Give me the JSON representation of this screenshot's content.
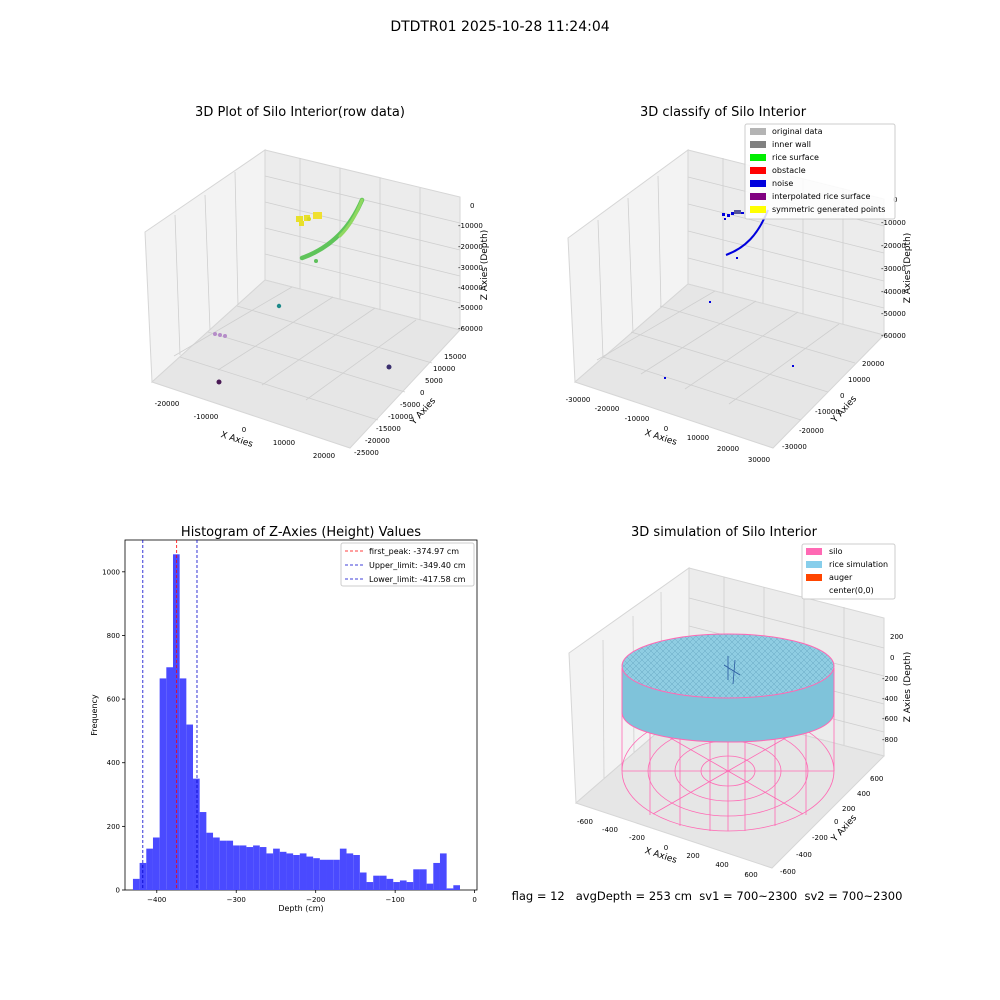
{
  "suptitle": "DTDTR01 2025-10-28 11:24:04",
  "footer": "flag = 12   avgDepth = 253 cm  sv1 = 700~2300  sv2 = 700~2300",
  "chart_data": [
    {
      "type": "scatter3d",
      "title": "3D Plot of Silo Interior(row data)",
      "xlabel": "X Axies",
      "ylabel": "Y Axies",
      "zlabel": "Z Axies (Depth)",
      "x_ticks": [
        "-20000",
        "-10000",
        "0",
        "10000",
        "20000"
      ],
      "y_ticks": [
        "-25000",
        "-20000",
        "-15000",
        "-10000",
        "-5000",
        "0",
        "5000",
        "10000",
        "15000"
      ],
      "z_ticks": [
        "0",
        "-10000",
        "-20000",
        "-30000",
        "-40000",
        "-50000",
        "-60000"
      ],
      "grid": true
    },
    {
      "type": "scatter3d",
      "title": "3D classify of Silo Interior",
      "xlabel": "X Axies",
      "ylabel": "Y Axies",
      "zlabel": "Z Axies (Depth)",
      "x_ticks": [
        "-30000",
        "-20000",
        "-10000",
        "0",
        "10000",
        "20000",
        "30000"
      ],
      "y_ticks": [
        "-30000",
        "-20000",
        "-10000",
        "0",
        "10000",
        "20000"
      ],
      "z_ticks": [
        "0",
        "-10000",
        "-20000",
        "-30000",
        "-40000",
        "-50000",
        "-60000"
      ],
      "legend_position": "top-right",
      "legend": [
        {
          "label": "original data",
          "color": "#b4b4b4"
        },
        {
          "label": "inner wall",
          "color": "#808080"
        },
        {
          "label": "rice surface",
          "color": "#00ee00"
        },
        {
          "label": "obstacle",
          "color": "#ff0000"
        },
        {
          "label": "noise",
          "color": "#0000dd"
        },
        {
          "label": "interpolated rice surface",
          "color": "#800080"
        },
        {
          "label": "symmetric generated points",
          "color": "#ffff00"
        }
      ],
      "grid": true
    },
    {
      "type": "bar",
      "title": "Histogram of Z-Axies (Height) Values",
      "xlabel": "Depth (cm)",
      "ylabel": "Frequency",
      "xlim": [
        -440,
        3
      ],
      "ylim": [
        0,
        1100
      ],
      "x_ticks": [
        -400,
        -300,
        -200,
        -100,
        0
      ],
      "y_ticks": [
        0,
        200,
        400,
        600,
        800,
        1000
      ],
      "bin_start": -430,
      "bin_width": 8.4,
      "values": [
        35,
        85,
        130,
        165,
        665,
        700,
        1055,
        665,
        520,
        350,
        245,
        180,
        165,
        155,
        155,
        140,
        140,
        135,
        140,
        135,
        115,
        130,
        120,
        115,
        110,
        115,
        105,
        100,
        95,
        95,
        95,
        130,
        115,
        110,
        55,
        25,
        45,
        45,
        35,
        25,
        30,
        25,
        65,
        65,
        20,
        85,
        115,
        5,
        15
      ],
      "bar_color": "#4a4aff",
      "vlines": [
        {
          "label": "first_peak: -374.97 cm",
          "x": -374.97,
          "color": "#ff0000"
        },
        {
          "label": "Upper_limit: -349.40 cm",
          "x": -349.4,
          "color": "#0000cc"
        },
        {
          "label": "Lower_limit: -417.58 cm",
          "x": -417.58,
          "color": "#0000cc"
        }
      ],
      "legend_position": "top-right",
      "grid": false
    },
    {
      "type": "surface3d",
      "title": "3D simulation of Silo Interior",
      "xlabel": "X Axies",
      "ylabel": "Y Axies",
      "zlabel": "Z Axies (Depth)",
      "x_ticks": [
        "-600",
        "-400",
        "-200",
        "0",
        "200",
        "400",
        "600"
      ],
      "y_ticks": [
        "-600",
        "-400",
        "-200",
        "0",
        "200",
        "400",
        "600"
      ],
      "z_ticks": [
        "200",
        "0",
        "-200",
        "-400",
        "-600",
        "-800"
      ],
      "legend_position": "top-right",
      "legend": [
        {
          "label": "silo",
          "color": "#ff69b4"
        },
        {
          "label": "rice simulation",
          "color": "#87ceeb"
        },
        {
          "label": "auger",
          "color": "#ff4500"
        },
        {
          "label": "center(0,0)",
          "color": ""
        }
      ],
      "grid": true
    }
  ]
}
